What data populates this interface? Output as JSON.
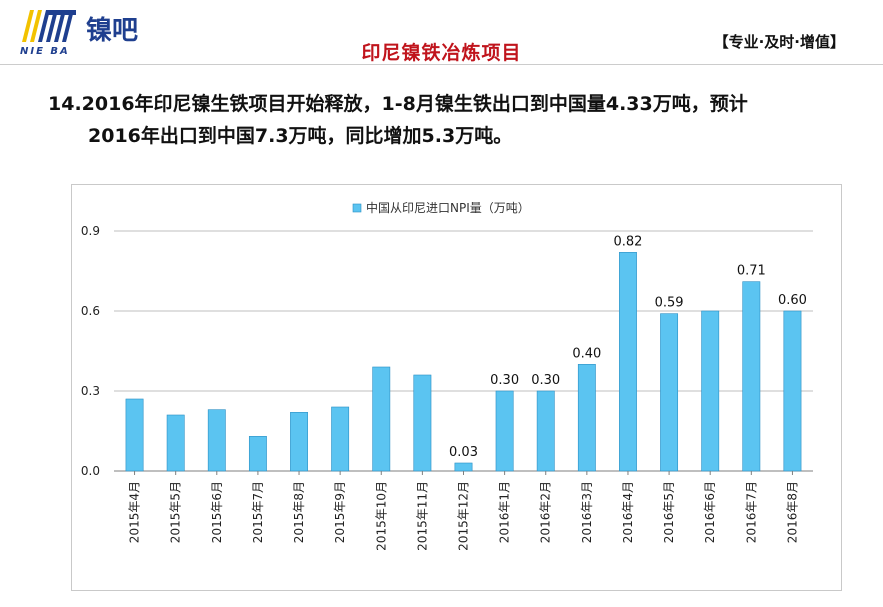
{
  "header": {
    "logo_text_cn": "镍吧",
    "logo_text_en": "NIE BA",
    "title": "印尼镍铁冶炼项目",
    "slogan": "【专业·及时·增值】"
  },
  "headline": {
    "line1": "14.2016年印尼镍生铁项目开始释放，1-8月镍生铁出口到中国量4.33万吨，预计",
    "line2": "2016年出口到中国7.3万吨，同比增加5.3万吨。"
  },
  "colors": {
    "bar": "#5bc4f1",
    "bar_stroke": "#2a8fc4",
    "title_red": "#c0141c",
    "logo_blue": "#1f3f8f",
    "logo_yellow": "#f2c200"
  },
  "chart_data": {
    "type": "bar",
    "legend": "中国从印尼进口NPI量（万吨）",
    "legend_position": "top",
    "categories": [
      "2015年4月",
      "2015年5月",
      "2015年6月",
      "2015年7月",
      "2015年8月",
      "2015年9月",
      "2015年10月",
      "2015年11月",
      "2015年12月",
      "2016年1月",
      "2016年2月",
      "2016年3月",
      "2016年4月",
      "2016年5月",
      "2016年6月",
      "2016年7月",
      "2016年8月"
    ],
    "series": [
      {
        "name": "中国从印尼进口NPI量（万吨）",
        "values": [
          0.27,
          0.21,
          0.23,
          0.13,
          0.22,
          0.24,
          0.39,
          0.36,
          0.03,
          0.3,
          0.3,
          0.4,
          0.82,
          0.59,
          0.6,
          0.71,
          0.6
        ]
      }
    ],
    "data_labels": [
      "",
      "",
      "",
      "",
      "",
      "",
      "",
      "",
      "0.03",
      "0.30",
      "0.30",
      "0.40",
      "0.82",
      "0.59",
      "",
      "0.71",
      "0.60"
    ],
    "ylim": [
      0,
      0.9
    ],
    "yticks": [
      "0.0",
      "0.3",
      "0.6",
      "0.9"
    ],
    "grid": true
  }
}
